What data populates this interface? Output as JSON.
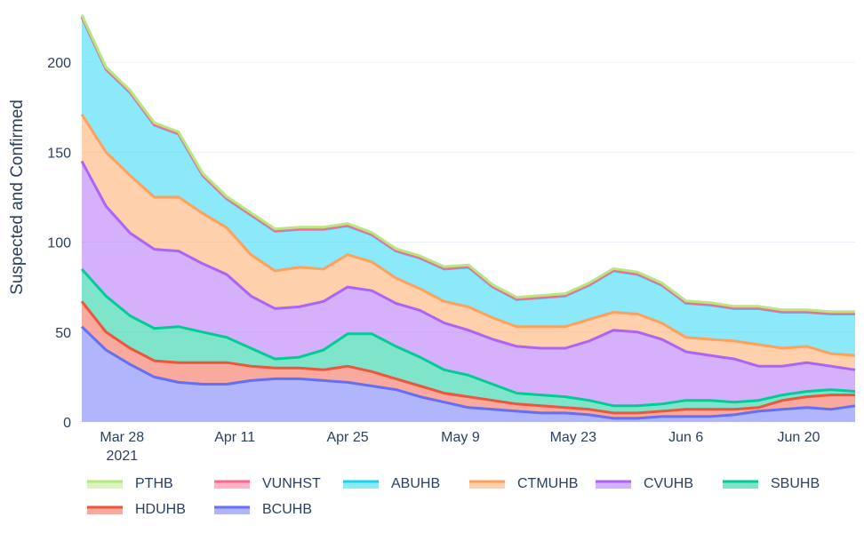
{
  "chart_data": {
    "type": "area",
    "stacked": true,
    "title": "",
    "xlabel": "",
    "ylabel": "Suspected and Confirmed",
    "ylim": [
      0,
      226
    ],
    "xlim": [
      "2021-03-23",
      "2021-06-27"
    ],
    "yticks": [
      0,
      50,
      100,
      150,
      200
    ],
    "xticks": [
      {
        "date": "2021-03-28",
        "label": "Mar 28",
        "sublabel": "2021"
      },
      {
        "date": "2021-04-11",
        "label": "Apr 11"
      },
      {
        "date": "2021-04-25",
        "label": "Apr 25"
      },
      {
        "date": "2021-05-09",
        "label": "May 9"
      },
      {
        "date": "2021-05-23",
        "label": "May 23"
      },
      {
        "date": "2021-06-06",
        "label": "Jun 6"
      },
      {
        "date": "2021-06-20",
        "label": "Jun 20"
      }
    ],
    "grid": true,
    "legend_placement": "bottom",
    "x": [
      "2021-03-23",
      "2021-03-26",
      "2021-03-29",
      "2021-04-01",
      "2021-04-04",
      "2021-04-07",
      "2021-04-10",
      "2021-04-13",
      "2021-04-16",
      "2021-04-19",
      "2021-04-22",
      "2021-04-25",
      "2021-04-28",
      "2021-05-01",
      "2021-05-04",
      "2021-05-07",
      "2021-05-10",
      "2021-05-13",
      "2021-05-16",
      "2021-05-19",
      "2021-05-22",
      "2021-05-25",
      "2021-05-28",
      "2021-05-31",
      "2021-06-03",
      "2021-06-06",
      "2021-06-09",
      "2021-06-12",
      "2021-06-15",
      "2021-06-18",
      "2021-06-21",
      "2021-06-24",
      "2021-06-27"
    ],
    "series": [
      {
        "name": "BCUHB",
        "color": "#636efa",
        "values": [
          53,
          40,
          32,
          25,
          22,
          21,
          21,
          23,
          24,
          24,
          23,
          22,
          20,
          18,
          14,
          11,
          8,
          7,
          6,
          5,
          5,
          4,
          2,
          2,
          3,
          3,
          3,
          4,
          6,
          7,
          8,
          7,
          9
        ]
      },
      {
        "name": "HDUHB",
        "color": "#ef553b",
        "values": [
          14,
          10,
          9,
          9,
          11,
          12,
          12,
          8,
          6,
          6,
          6,
          9,
          8,
          6,
          6,
          5,
          6,
          5,
          4,
          4,
          3,
          3,
          3,
          3,
          3,
          4,
          4,
          3,
          2,
          5,
          6,
          8,
          6
        ]
      },
      {
        "name": "SBUHB",
        "color": "#00cc96",
        "values": [
          18,
          20,
          18,
          18,
          20,
          17,
          14,
          10,
          5,
          6,
          11,
          18,
          21,
          18,
          16,
          13,
          12,
          9,
          6,
          6,
          6,
          5,
          4,
          4,
          4,
          5,
          5,
          4,
          4,
          3,
          3,
          3,
          2
        ]
      },
      {
        "name": "CVUHB",
        "color": "#ab63fa",
        "values": [
          60,
          50,
          46,
          44,
          42,
          38,
          35,
          29,
          28,
          28,
          27,
          26,
          24,
          24,
          26,
          26,
          25,
          25,
          26,
          26,
          27,
          33,
          42,
          41,
          36,
          27,
          25,
          24,
          19,
          16,
          16,
          13,
          12
        ]
      },
      {
        "name": "CTMUHB",
        "color": "#ffa15a",
        "values": [
          26,
          30,
          32,
          29,
          30,
          28,
          26,
          23,
          21,
          22,
          18,
          18,
          16,
          14,
          12,
          12,
          13,
          12,
          11,
          12,
          12,
          12,
          10,
          10,
          9,
          8,
          9,
          10,
          12,
          10,
          9,
          7,
          8
        ]
      },
      {
        "name": "ABUHB",
        "color": "#19d3f3",
        "values": [
          54,
          46,
          46,
          40,
          35,
          21,
          16,
          22,
          22,
          21,
          22,
          16,
          15,
          15,
          17,
          18,
          22,
          17,
          15,
          16,
          17,
          19,
          23,
          22,
          21,
          19,
          19,
          18,
          20,
          20,
          19,
          22,
          23
        ]
      },
      {
        "name": "VUNHST",
        "color": "#ff6692",
        "values": [
          0.3,
          0.3,
          0.3,
          0.3,
          0.3,
          0.3,
          0.3,
          0.3,
          0.3,
          0.3,
          0.3,
          0.3,
          0.3,
          0.3,
          0.3,
          0.3,
          0.3,
          0.3,
          0.3,
          0.3,
          0.3,
          0.3,
          0.3,
          0.3,
          0.3,
          0.3,
          0.3,
          0.3,
          0.3,
          0.3,
          0.3,
          0.3,
          0.3
        ]
      },
      {
        "name": "PTHB",
        "color": "#b6e880",
        "values": [
          1,
          1,
          1,
          1,
          1,
          1,
          1,
          1,
          1,
          1,
          1,
          1,
          1,
          1,
          1,
          1,
          1,
          1,
          1,
          1,
          1,
          1,
          1,
          1,
          1,
          1,
          1,
          1,
          1,
          1,
          1,
          1,
          1
        ]
      }
    ],
    "legend_order": [
      "PTHB",
      "VUNHST",
      "ABUHB",
      "CTMUHB",
      "CVUHB",
      "SBUHB",
      "HDUHB",
      "BCUHB"
    ]
  }
}
